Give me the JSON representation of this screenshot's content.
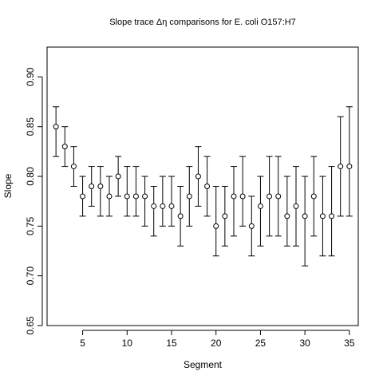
{
  "chart_data": {
    "type": "scatter",
    "title": "Slope trace Δη comparisons for E. coli O157:H7",
    "xlabel": "Segment",
    "ylabel": "Slope",
    "xlim": [
      1,
      36
    ],
    "ylim": [
      0.65,
      0.93
    ],
    "xticks": [
      5,
      10,
      15,
      20,
      25,
      30,
      35
    ],
    "yticks": [
      0.65,
      0.7,
      0.75,
      0.8,
      0.85,
      0.9
    ],
    "grid": false,
    "error_bars": true,
    "points": [
      {
        "x": 2,
        "y": 0.85,
        "lo": 0.82,
        "hi": 0.87
      },
      {
        "x": 3,
        "y": 0.83,
        "lo": 0.81,
        "hi": 0.85
      },
      {
        "x": 4,
        "y": 0.81,
        "lo": 0.79,
        "hi": 0.83
      },
      {
        "x": 5,
        "y": 0.78,
        "lo": 0.76,
        "hi": 0.8
      },
      {
        "x": 6,
        "y": 0.79,
        "lo": 0.77,
        "hi": 0.81
      },
      {
        "x": 7,
        "y": 0.79,
        "lo": 0.76,
        "hi": 0.81
      },
      {
        "x": 8,
        "y": 0.78,
        "lo": 0.76,
        "hi": 0.8
      },
      {
        "x": 9,
        "y": 0.8,
        "lo": 0.78,
        "hi": 0.82
      },
      {
        "x": 10,
        "y": 0.78,
        "lo": 0.76,
        "hi": 0.81
      },
      {
        "x": 11,
        "y": 0.78,
        "lo": 0.76,
        "hi": 0.81
      },
      {
        "x": 12,
        "y": 0.78,
        "lo": 0.75,
        "hi": 0.8
      },
      {
        "x": 13,
        "y": 0.77,
        "lo": 0.74,
        "hi": 0.79
      },
      {
        "x": 14,
        "y": 0.77,
        "lo": 0.75,
        "hi": 0.8
      },
      {
        "x": 15,
        "y": 0.77,
        "lo": 0.75,
        "hi": 0.8
      },
      {
        "x": 16,
        "y": 0.76,
        "lo": 0.73,
        "hi": 0.79
      },
      {
        "x": 17,
        "y": 0.78,
        "lo": 0.75,
        "hi": 0.81
      },
      {
        "x": 18,
        "y": 0.8,
        "lo": 0.77,
        "hi": 0.83
      },
      {
        "x": 19,
        "y": 0.79,
        "lo": 0.76,
        "hi": 0.82
      },
      {
        "x": 20,
        "y": 0.75,
        "lo": 0.72,
        "hi": 0.79
      },
      {
        "x": 21,
        "y": 0.76,
        "lo": 0.73,
        "hi": 0.79
      },
      {
        "x": 22,
        "y": 0.78,
        "lo": 0.74,
        "hi": 0.81
      },
      {
        "x": 23,
        "y": 0.78,
        "lo": 0.75,
        "hi": 0.82
      },
      {
        "x": 24,
        "y": 0.75,
        "lo": 0.72,
        "hi": 0.78
      },
      {
        "x": 25,
        "y": 0.77,
        "lo": 0.73,
        "hi": 0.8
      },
      {
        "x": 26,
        "y": 0.78,
        "lo": 0.74,
        "hi": 0.82
      },
      {
        "x": 27,
        "y": 0.78,
        "lo": 0.74,
        "hi": 0.82
      },
      {
        "x": 28,
        "y": 0.76,
        "lo": 0.73,
        "hi": 0.8
      },
      {
        "x": 29,
        "y": 0.77,
        "lo": 0.73,
        "hi": 0.81
      },
      {
        "x": 30,
        "y": 0.76,
        "lo": 0.71,
        "hi": 0.8
      },
      {
        "x": 31,
        "y": 0.78,
        "lo": 0.74,
        "hi": 0.82
      },
      {
        "x": 32,
        "y": 0.76,
        "lo": 0.72,
        "hi": 0.8
      },
      {
        "x": 33,
        "y": 0.76,
        "lo": 0.72,
        "hi": 0.81
      },
      {
        "x": 34,
        "y": 0.81,
        "lo": 0.76,
        "hi": 0.86
      },
      {
        "x": 35,
        "y": 0.81,
        "lo": 0.76,
        "hi": 0.87
      }
    ]
  }
}
